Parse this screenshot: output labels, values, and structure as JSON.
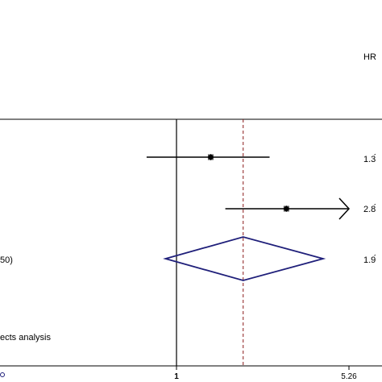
{
  "chart_data": {
    "type": "forest",
    "header_label": "HR",
    "x_scale": "log",
    "xlim": [
      0.19,
      5.26
    ],
    "reference_value": 1,
    "pooled_line_value": 1.9,
    "x_tick_labels": [
      "1",
      "5.26"
    ],
    "studies": [
      {
        "hr": 1.39,
        "ci_low": 0.75,
        "ci_high": 2.45,
        "hr_text": "1.3́"
      },
      {
        "hr": 2.88,
        "ci_low": 1.6,
        "ci_high": 5.26,
        "ci_arrow": true,
        "hr_text": "2.8́"
      }
    ],
    "pooled": {
      "hr": 1.9,
      "ci_low": 0.9,
      "ci_high": 4.1,
      "hr_text": "1.9́",
      "label": "50)"
    },
    "footer_label": "ects analysis",
    "colors": {
      "axis": "#000000",
      "reference_line": "#8b1a1a",
      "diamond": "#1f1f7a",
      "ci_line": "#000000"
    }
  }
}
